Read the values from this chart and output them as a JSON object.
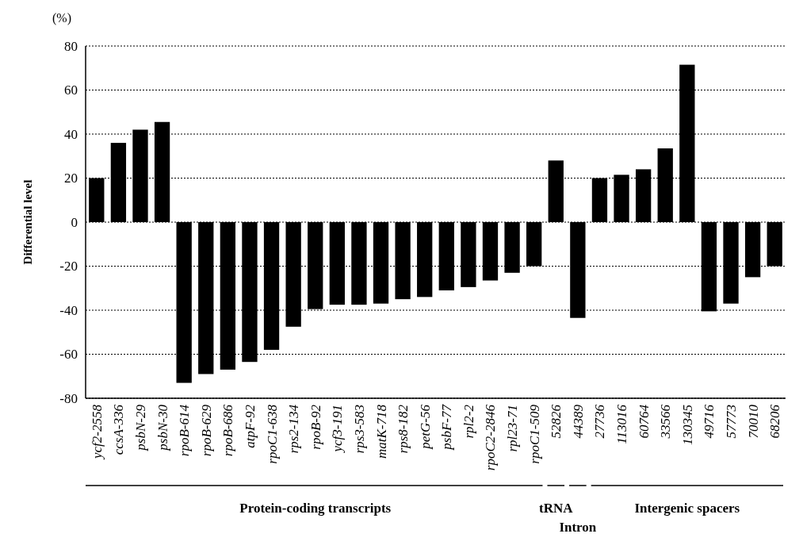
{
  "chart_data": {
    "type": "bar",
    "ylabel": "Differential level",
    "categories": [
      "ycf2-2558",
      "ccsA-336",
      "psbN-29",
      "psbN-30",
      "rpoB-614",
      "rpoB-629",
      "rpoB-686",
      "atpF-92",
      "rpoC1-638",
      "rps2-134",
      "rpoB-92",
      "ycf3-191",
      "rps3-583",
      "matK-718",
      "rps8-182",
      "petG-56",
      "psbF-77",
      "rpl2-2",
      "rpoC2-2846",
      "rpl23-71",
      "rpoC1-509",
      "52826",
      "44389",
      "27736",
      "113016",
      "60764",
      "33566",
      "130345",
      "49716",
      "57773",
      "70010",
      "68206"
    ],
    "values": [
      20,
      36,
      42,
      45.5,
      -73,
      -69,
      -67,
      -63.5,
      -58,
      -47.5,
      -39.5,
      -37.5,
      -37.5,
      -37,
      -35,
      -34,
      -31,
      -29.5,
      -26.5,
      -23,
      -20,
      28,
      -43.5,
      20,
      21.5,
      24,
      33.5,
      71.5,
      -40.5,
      -37,
      -25,
      -20
    ],
    "color": "#000000",
    "ylim": [
      -80,
      80
    ],
    "yticks": [
      -80,
      -60,
      -40,
      -20,
      0,
      20,
      40,
      60,
      80
    ],
    "grid": "y",
    "annotations": [
      "(%)",
      "Protein-coding transcripts",
      "tRNA",
      "Intron",
      "Intergenic spacers"
    ]
  }
}
